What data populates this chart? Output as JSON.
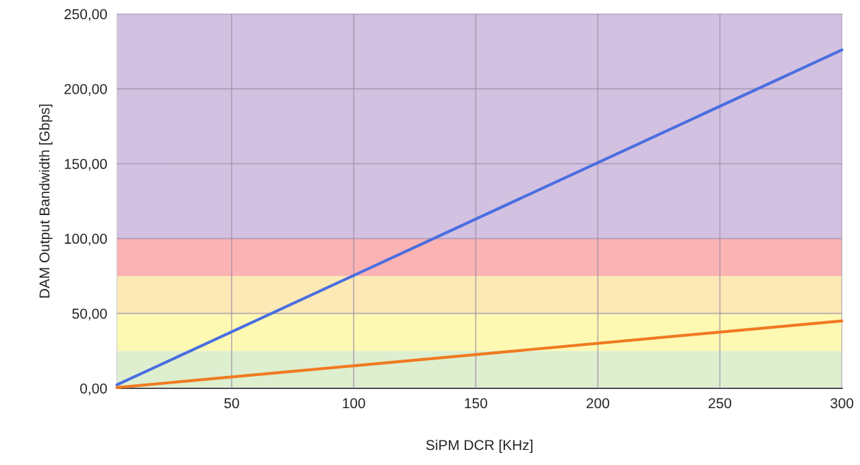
{
  "chart_data": {
    "type": "line",
    "xlabel": "SiPM DCR [KHz]",
    "ylabel": "DAM Output Bandwidth [Gbps]",
    "series": [
      {
        "color": "#4a6ee0",
        "values": [
          2.3,
          226
        ]
      },
      {
        "color": "#f07a22",
        "values": [
          0.5,
          45
        ]
      }
    ],
    "x": [
      3,
      300
    ],
    "bands": [
      {
        "axis": "y",
        "from": 0,
        "to": 25,
        "color": "#deefcf"
      },
      {
        "axis": "y",
        "from": 25,
        "to": 50,
        "color": "#fdf9b3"
      },
      {
        "axis": "y",
        "from": 50,
        "to": 75,
        "color": "#fce9b6"
      },
      {
        "axis": "y",
        "from": 75,
        "to": 100,
        "color": "#fbb3b4"
      },
      {
        "axis": "y",
        "from": 100,
        "to": 250,
        "color": "#d3c1e2"
      }
    ],
    "xlim": [
      3,
      300
    ],
    "xticks": [
      50,
      100,
      150,
      200,
      250,
      300
    ],
    "ylim": [
      0,
      250
    ],
    "yticks": [
      {
        "value": 0,
        "label": "0,00"
      },
      {
        "value": 50,
        "label": "50,00"
      },
      {
        "value": 100,
        "label": "100,00"
      },
      {
        "value": 150,
        "label": "150,00"
      },
      {
        "value": 200,
        "label": "200,00"
      },
      {
        "value": 250,
        "label": "250,00"
      }
    ],
    "grid": true
  }
}
